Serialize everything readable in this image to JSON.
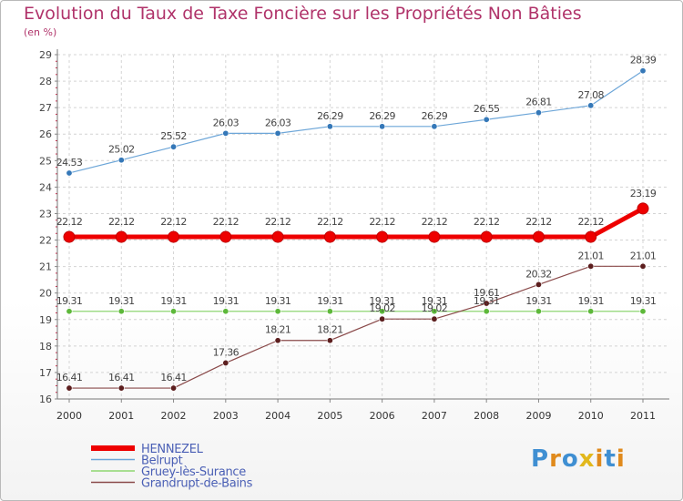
{
  "header": {
    "title": "Evolution du Taux de Taxe Foncière sur les Propriétés Non Bâties",
    "unit": "(en %)"
  },
  "logo": {
    "text": "Proxiti",
    "letters": [
      "P",
      "r",
      "o",
      "x",
      "i",
      "t",
      "i"
    ],
    "colors": [
      "#3f8fd2",
      "#e08a1c",
      "#3f8fd2",
      "#e2b81c",
      "#e08a1c",
      "#3f8fd2",
      "#e08a1c"
    ]
  },
  "chart_data": {
    "type": "line",
    "title": "Evolution du Taux de Taxe Foncière sur les Propriétés Non Bâties",
    "ylabel": "(en %)",
    "xlabel": "",
    "ylim": [
      16,
      29
    ],
    "yticks": [
      "16",
      "17",
      "18",
      "19",
      "20",
      "21",
      "22",
      "23",
      "24",
      "25",
      "26",
      "27",
      "28",
      "29"
    ],
    "grid": true,
    "categories": [
      "2000",
      "2001",
      "2002",
      "2003",
      "2004",
      "2005",
      "2006",
      "2007",
      "2008",
      "2009",
      "2010",
      "2011"
    ],
    "series": [
      {
        "name": "HENNEZEL",
        "color": "#ee0000",
        "width": 5,
        "marker": 6,
        "values": [
          22.12,
          22.12,
          22.12,
          22.12,
          22.12,
          22.12,
          22.12,
          22.12,
          22.12,
          22.12,
          22.12,
          23.19
        ],
        "labels": [
          "22.12",
          "22.12",
          "22.12",
          "22.12",
          "22.12",
          "22.12",
          "22.12",
          "22.12",
          "22.12",
          "22.12",
          "22.12",
          "23.19"
        ]
      },
      {
        "name": "Belrupt",
        "color": "#6da6d8",
        "marker_color": "#3578b8",
        "width": 1.2,
        "marker": 3.2,
        "values": [
          24.53,
          25.02,
          25.52,
          26.03,
          26.03,
          26.29,
          26.29,
          26.29,
          26.55,
          26.81,
          27.08,
          28.39
        ],
        "labels": [
          "24.53",
          "25.02",
          "25.52",
          "26.03",
          "26.03",
          "26.29",
          "26.29",
          "26.29",
          "26.55",
          "26.81",
          "27.08",
          "28.39"
        ]
      },
      {
        "name": "Gruey-lès-Surance",
        "color": "#8fd672",
        "marker_color": "#5db83a",
        "width": 1.2,
        "marker": 3.2,
        "values": [
          19.31,
          19.31,
          19.31,
          19.31,
          19.31,
          19.31,
          19.31,
          19.31,
          19.31,
          19.31,
          19.31,
          19.31
        ],
        "labels": [
          "19.31",
          "19.31",
          "19.31",
          "19.31",
          "19.31",
          "19.31",
          "19.31",
          "19.31",
          "19.31",
          "19.31",
          "19.31",
          "19.31"
        ]
      },
      {
        "name": "Grandrupt-de-Bains",
        "color": "#8a4a4a",
        "marker_color": "#5c1e1e",
        "width": 1.2,
        "marker": 3.2,
        "values": [
          16.41,
          16.41,
          16.41,
          17.36,
          18.21,
          18.21,
          19.02,
          19.02,
          19.61,
          20.32,
          21.01,
          21.01
        ],
        "labels": [
          "16.41",
          "16.41",
          "16.41",
          "17.36",
          "18.21",
          "18.21",
          "19.02",
          "19.02",
          "19.61",
          "20.32",
          "21.01",
          "21.01"
        ]
      }
    ]
  }
}
